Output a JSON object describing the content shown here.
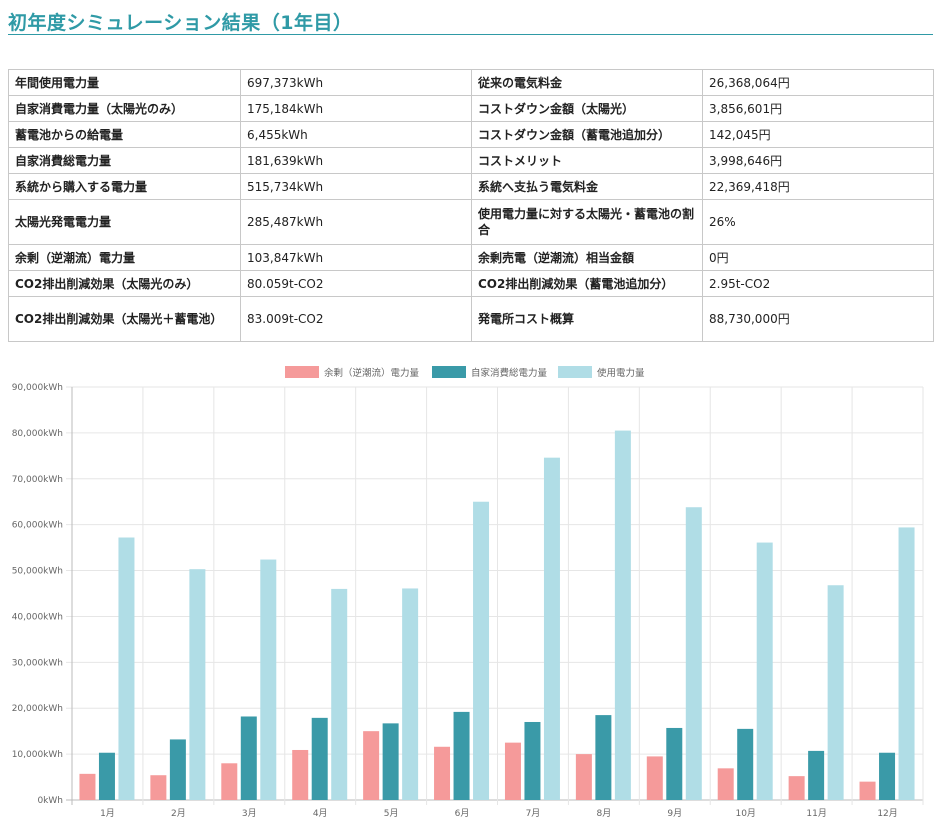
{
  "page": {
    "title": "初年度シミュレーション結果（1年目）"
  },
  "summary": {
    "rows": [
      {
        "k1": "年間使用電力量",
        "v1": "697,373kWh",
        "k2": "従来の電気料金",
        "v2": "26,368,064円",
        "h": 26
      },
      {
        "k1": "自家消費電力量（太陽光のみ）",
        "v1": "175,184kWh",
        "k2": "コストダウン金額（太陽光）",
        "v2": "3,856,601円",
        "h": 26
      },
      {
        "k1": "蓄電池からの給電量",
        "v1": "6,455kWh",
        "k2": "コストダウン金額（蓄電池追加分）",
        "v2": "142,045円",
        "h": 26
      },
      {
        "k1": "自家消費総電力量",
        "v1": "181,639kWh",
        "k2": "コストメリット",
        "v2": "3,998,646円",
        "h": 26
      },
      {
        "k1": "系統から購入する電力量",
        "v1": "515,734kWh",
        "k2": "系統へ支払う電気料金",
        "v2": "22,369,418円",
        "h": 26
      },
      {
        "k1": "太陽光発電電力量",
        "v1": "285,487kWh",
        "k2": "使用電力量に対する太陽光・蓄電池の割合",
        "v2": "26%",
        "h": 45
      },
      {
        "k1": "余剰（逆潮流）電力量",
        "v1": "103,847kWh",
        "k2": "余剰売電（逆潮流）相当金額",
        "v2": "0円",
        "h": 26
      },
      {
        "k1": "CO2排出削減効果（太陽光のみ）",
        "v1": "80.059t-CO2",
        "k2": "CO2排出削減効果（蓄電池追加分）",
        "v2": "2.95t-CO2",
        "h": 26
      },
      {
        "k1": "CO2排出削減効果（太陽光＋蓄電池）",
        "v1": "83.009t-CO2",
        "k2": "発電所コスト概算",
        "v2": "88,730,000円",
        "h": 45
      }
    ]
  },
  "chart_data": {
    "type": "bar",
    "categories": [
      "1月",
      "2月",
      "3月",
      "4月",
      "5月",
      "6月",
      "7月",
      "8月",
      "9月",
      "10月",
      "11月",
      "12月"
    ],
    "series": [
      {
        "name": "余剰（逆潮流）電力量",
        "color": "#f59a9a",
        "values": [
          5700,
          5400,
          8000,
          10900,
          15000,
          11600,
          12500,
          10000,
          9500,
          6900,
          5200,
          4000
        ]
      },
      {
        "name": "自家消費総電力量",
        "color": "#3a9aa8",
        "values": [
          10300,
          13200,
          18200,
          17900,
          16700,
          19200,
          17000,
          18500,
          15700,
          15500,
          10700,
          10300
        ]
      },
      {
        "name": "使用電力量",
        "color": "#b0dde6",
        "values": [
          57200,
          50300,
          52400,
          46000,
          46100,
          65000,
          74600,
          80500,
          63800,
          56100,
          46800,
          59400
        ]
      }
    ],
    "yticks": [
      "0kWh",
      "10,000kWh",
      "20,000kWh",
      "30,000kWh",
      "40,000kWh",
      "50,000kWh",
      "60,000kWh",
      "70,000kWh",
      "80,000kWh",
      "90,000kWh"
    ],
    "ylim": [
      0,
      90000
    ],
    "legend": "top",
    "grid": true
  }
}
